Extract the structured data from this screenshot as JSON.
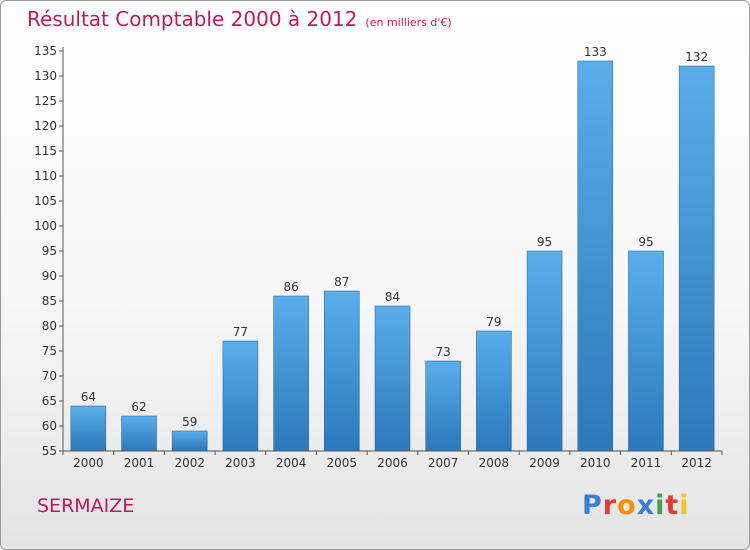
{
  "header": {
    "title": "Résultat Comptable 2000 à 2012",
    "subtitle": "(en milliers d'€)"
  },
  "footer": {
    "commune": "SERMAIZE",
    "logo": {
      "letters": [
        "P",
        "r",
        "o",
        "x",
        "i",
        "t",
        "i"
      ],
      "colors": [
        "#3a7fd5",
        "#e53935",
        "#fb8c00",
        "#3a7fd5",
        "#43a047",
        "#e53935",
        "#fbc02d"
      ]
    }
  },
  "chart_data": {
    "type": "bar",
    "categories": [
      "2000",
      "2001",
      "2002",
      "2003",
      "2004",
      "2005",
      "2006",
      "2007",
      "2008",
      "2009",
      "2010",
      "2011",
      "2012"
    ],
    "values": [
      64,
      62,
      59,
      77,
      86,
      87,
      84,
      73,
      79,
      95,
      133,
      95,
      132
    ],
    "ylim": [
      55,
      135
    ],
    "yticks": [
      55,
      60,
      65,
      70,
      75,
      80,
      85,
      90,
      95,
      100,
      105,
      110,
      115,
      120,
      125,
      130,
      135
    ],
    "data_labels": true,
    "grid": false,
    "bar_color": "#3d95d9"
  }
}
